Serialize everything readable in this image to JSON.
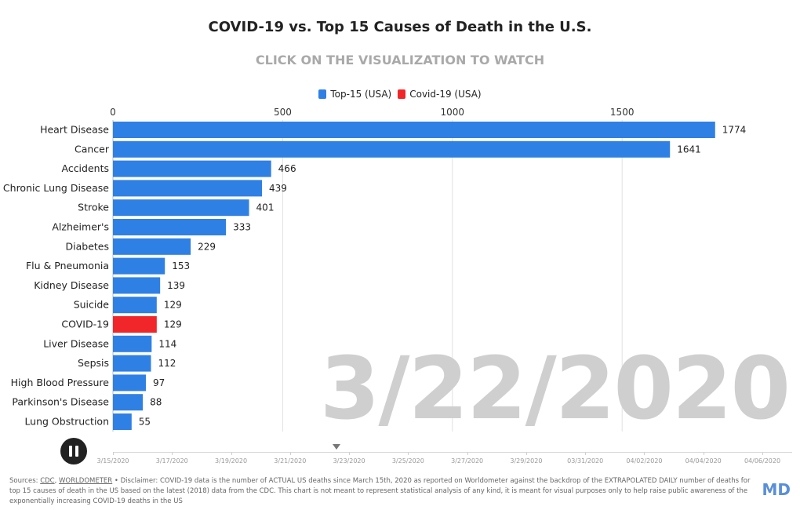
{
  "header": {
    "title": "COVID-19 vs. Top 15 Causes of Death in the U.S.",
    "subtitle": "CLICK ON THE VISUALIZATION TO WATCH"
  },
  "legend": [
    {
      "label": "Top-15 (USA)",
      "color": "#2f80e4"
    },
    {
      "label": "Covid-19 (USA)",
      "color": "#f0262a"
    }
  ],
  "current_date": "3/22/2020",
  "timeline": {
    "ticks": [
      "3/15/2020",
      "3/17/2020",
      "3/19/2020",
      "3/21/2020",
      "3/23/2020",
      "3/25/2020",
      "3/27/2020",
      "3/29/2020",
      "03/31/2020",
      "04/02/2020",
      "04/04/2020",
      "04/06/2020"
    ],
    "current": "3/22/2020"
  },
  "footer": {
    "sources_prefix": "Sources: ",
    "link1": "CDC",
    "separator": ", ",
    "link2": "WORLDOMETER",
    "text": " • Disclaimer: COVID-19 data is the number of ACTUAL US deaths since March 15th, 2020 as reported on Worldometer against the backdrop of the EXTRAPOLATED DAILY number of deaths for top 15 causes of death in the US based on the latest (2018) data from the CDC. This chart is not meant to represent statistical analysis of any kind, it is meant for visual purposes only to help raise public awareness of the exponentially increasing COVID-19 deaths in the US",
    "brand": "MD"
  },
  "chart_data": {
    "type": "bar",
    "orientation": "horizontal",
    "title": "COVID-19 vs. Top 15 Causes of Death in the U.S.",
    "xlim": [
      0,
      1900
    ],
    "x_ticks": [
      0,
      500,
      1000,
      1500
    ],
    "grid": true,
    "categories": [
      "Heart Disease",
      "Cancer",
      "Accidents",
      "Chronic Lung Disease",
      "Stroke",
      "Alzheimer's",
      "Diabetes",
      "Flu & Pneumonia",
      "Kidney Disease",
      "Suicide",
      "COVID-19",
      "Liver Disease",
      "Sepsis",
      "High Blood Pressure",
      "Parkinson's Disease",
      "Lung Obstruction"
    ],
    "values": [
      1774,
      1641,
      466,
      439,
      401,
      333,
      229,
      153,
      139,
      129,
      129,
      114,
      112,
      97,
      88,
      55
    ],
    "series_of": [
      "Top-15 (USA)",
      "Top-15 (USA)",
      "Top-15 (USA)",
      "Top-15 (USA)",
      "Top-15 (USA)",
      "Top-15 (USA)",
      "Top-15 (USA)",
      "Top-15 (USA)",
      "Top-15 (USA)",
      "Top-15 (USA)",
      "Covid-19 (USA)",
      "Top-15 (USA)",
      "Top-15 (USA)",
      "Top-15 (USA)",
      "Top-15 (USA)",
      "Top-15 (USA)"
    ],
    "colors": {
      "Top-15 (USA)": "#2f80e4",
      "Covid-19 (USA)": "#f0262a"
    }
  }
}
